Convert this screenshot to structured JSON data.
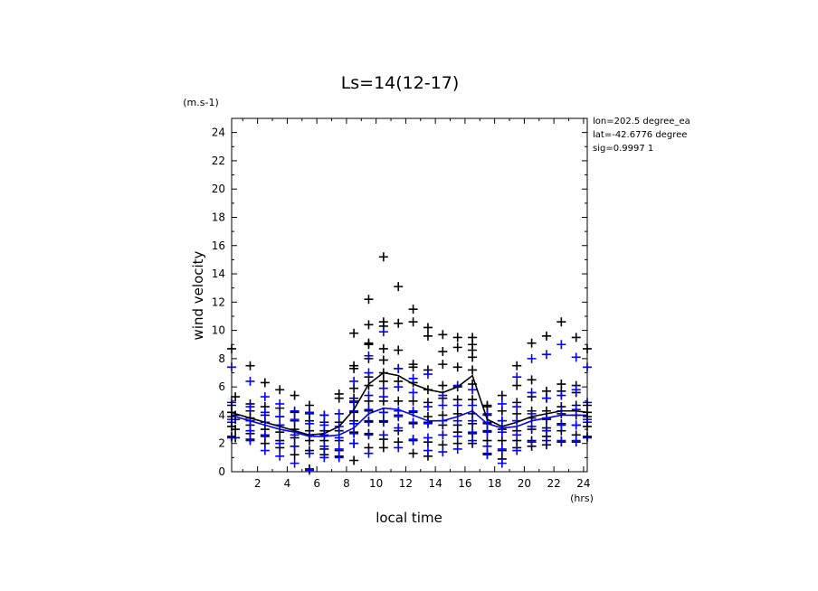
{
  "chart_data": {
    "type": "scatter",
    "title": "Ls=14(12-17)",
    "xlabel": "local time",
    "ylabel": "wind velocity",
    "y_unit": "(m.s-1)",
    "x_unit": "(hrs)",
    "xlim": [
      0.25,
      24.25
    ],
    "ylim": [
      0,
      25
    ],
    "xticks": [
      2,
      4,
      6,
      8,
      10,
      12,
      14,
      16,
      18,
      20,
      22,
      24
    ],
    "yticks": [
      0,
      2,
      4,
      6,
      8,
      10,
      12,
      14,
      16,
      18,
      20,
      22,
      24
    ],
    "info_lines": [
      "lon=202.5 degree_ea",
      "lat=-42.6776 degree",
      "sig=0.9997 1"
    ],
    "colors": {
      "black_series": "#000000",
      "blue_series": "#0000ff"
    },
    "scatter_black": [
      {
        "x": 0.25,
        "y": [
          8.7,
          4.7,
          4.2,
          3.9,
          3.2,
          2.5
        ]
      },
      {
        "x": 0.5,
        "y": [
          5.3,
          4.0,
          3.7,
          3.0,
          2.4
        ]
      },
      {
        "x": 1.5,
        "y": [
          7.5,
          4.8,
          4.3,
          3.8,
          3.3,
          2.7,
          2.3
        ]
      },
      {
        "x": 2.5,
        "y": [
          6.3,
          4.6,
          4.0,
          3.5,
          3.0,
          2.5,
          2.0
        ]
      },
      {
        "x": 3.5,
        "y": [
          5.8,
          4.5,
          3.9,
          3.3,
          2.8,
          2.2,
          1.7
        ]
      },
      {
        "x": 4.5,
        "y": [
          5.4,
          4.2,
          3.6,
          3.0,
          2.4,
          1.8,
          1.2
        ]
      },
      {
        "x": 5.5,
        "y": [
          4.7,
          4.1,
          3.6,
          2.9,
          2.2,
          1.5,
          0.2
        ]
      },
      {
        "x": 6.5,
        "y": [
          4.0,
          3.5,
          2.9,
          2.2,
          1.6,
          1.2
        ]
      },
      {
        "x": 7.5,
        "y": [
          5.5,
          5.2,
          4.1,
          3.5,
          2.9,
          2.2,
          1.5,
          1.1
        ]
      },
      {
        "x": 8.5,
        "y": [
          9.8,
          7.5,
          7.3,
          5.9,
          5.2,
          4.9,
          4.2,
          3.6,
          2.8,
          2.0,
          0.8
        ]
      },
      {
        "x": 9.5,
        "y": [
          12.2,
          10.4,
          9.1,
          9.0,
          8.0,
          6.7,
          6.1,
          5.0,
          4.3,
          3.6,
          2.7,
          1.7
        ]
      },
      {
        "x": 10.5,
        "y": [
          15.2,
          10.6,
          10.3,
          8.7,
          7.9,
          7.0,
          6.4,
          5.0,
          4.2,
          3.6,
          2.3,
          1.7
        ]
      },
      {
        "x": 11.5,
        "y": [
          13.1,
          10.5,
          8.6,
          7.3,
          6.4,
          5.0,
          4.0,
          2.9,
          2.1
        ]
      },
      {
        "x": 12.5,
        "y": [
          11.5,
          10.6,
          7.6,
          7.4,
          6.3,
          5.0,
          4.2,
          3.4,
          2.2,
          1.3
        ]
      },
      {
        "x": 13.5,
        "y": [
          10.2,
          9.6,
          7.2,
          5.8,
          4.9,
          3.9,
          3.5,
          2.1,
          1.1
        ]
      },
      {
        "x": 14.5,
        "y": [
          9.7,
          8.5,
          7.6,
          6.1,
          5.2,
          4.0,
          3.3,
          2.6,
          1.9
        ]
      },
      {
        "x": 15.5,
        "y": [
          9.5,
          8.8,
          7.4,
          6.0,
          5.1,
          4.1,
          3.3,
          2.8,
          2.0
        ]
      },
      {
        "x": 16.5,
        "y": [
          9.5,
          9.0,
          8.6,
          8.1,
          7.2,
          6.2,
          5.1,
          4.1,
          3.4,
          2.7,
          2.0
        ]
      },
      {
        "x": 17.5,
        "y": [
          4.7,
          4.6,
          4.0,
          3.4,
          2.9,
          2.2,
          1.3
        ]
      },
      {
        "x": 18.5,
        "y": [
          5.4,
          4.3,
          3.6,
          3.0,
          2.2,
          1.5,
          0.9
        ]
      },
      {
        "x": 19.5,
        "y": [
          7.5,
          6.1,
          4.9,
          4.1,
          3.6,
          2.9,
          2.2,
          1.7
        ]
      },
      {
        "x": 20.5,
        "y": [
          9.1,
          6.5,
          5.3,
          4.3,
          3.8,
          3.0,
          2.2,
          1.8
        ]
      },
      {
        "x": 21.5,
        "y": [
          9.6,
          5.7,
          5.2,
          4.3,
          3.7,
          3.1,
          2.5,
          1.9
        ]
      },
      {
        "x": 22.5,
        "y": [
          10.6,
          6.2,
          5.7,
          4.6,
          4.1,
          3.4,
          2.9,
          2.1
        ]
      },
      {
        "x": 23.5,
        "y": [
          9.5,
          6.1,
          5.6,
          4.7,
          4.0,
          3.3,
          2.6,
          2.1
        ]
      },
      {
        "x": 24.25,
        "y": [
          8.7,
          4.7,
          4.2,
          3.9,
          3.2,
          2.5
        ]
      }
    ],
    "scatter_blue": [
      {
        "x": 0.25,
        "y": [
          7.4,
          4.9,
          3.7,
          3.5,
          2.4
        ]
      },
      {
        "x": 1.5,
        "y": [
          6.4,
          4.6,
          3.6,
          2.9,
          2.2
        ]
      },
      {
        "x": 2.5,
        "y": [
          5.3,
          4.2,
          3.5,
          2.6,
          1.5
        ]
      },
      {
        "x": 3.5,
        "y": [
          4.8,
          3.9,
          3.3,
          2.0,
          1.1
        ]
      },
      {
        "x": 4.5,
        "y": [
          4.3,
          3.7,
          2.6,
          1.8,
          0.6
        ]
      },
      {
        "x": 5.5,
        "y": [
          4.2,
          3.4,
          2.6,
          1.3,
          0.1
        ]
      },
      {
        "x": 6.5,
        "y": [
          4.0,
          3.3,
          2.6,
          1.8,
          1.0
        ]
      },
      {
        "x": 7.5,
        "y": [
          4.1,
          3.2,
          2.4,
          1.6,
          1.0
        ]
      },
      {
        "x": 8.5,
        "y": [
          6.4,
          5.0,
          4.3,
          3.4,
          2.7,
          2.0
        ]
      },
      {
        "x": 9.5,
        "y": [
          8.2,
          7.0,
          5.4,
          4.4,
          3.5,
          2.6,
          1.3
        ]
      },
      {
        "x": 10.5,
        "y": [
          9.9,
          5.9,
          5.3,
          4.2,
          3.5,
          2.6
        ]
      },
      {
        "x": 11.5,
        "y": [
          7.3,
          6.0,
          4.3,
          3.9,
          3.1,
          1.7
        ]
      },
      {
        "x": 12.5,
        "y": [
          6.6,
          5.6,
          4.3,
          3.5,
          2.3
        ]
      },
      {
        "x": 13.5,
        "y": [
          6.9,
          4.6,
          3.4,
          2.4,
          1.5
        ]
      },
      {
        "x": 14.5,
        "y": [
          5.4,
          4.7,
          3.6,
          2.6,
          1.4
        ]
      },
      {
        "x": 15.5,
        "y": [
          6.1,
          4.7,
          3.6,
          2.5,
          1.6
        ]
      },
      {
        "x": 16.5,
        "y": [
          5.8,
          4.7,
          3.6,
          2.8,
          2.2
        ]
      },
      {
        "x": 17.5,
        "y": [
          4.1,
          3.5,
          2.8,
          1.8,
          1.2
        ]
      },
      {
        "x": 18.5,
        "y": [
          4.8,
          3.6,
          2.8,
          1.6,
          0.6
        ]
      },
      {
        "x": 19.5,
        "y": [
          6.7,
          4.6,
          3.6,
          2.6,
          1.5
        ]
      },
      {
        "x": 20.5,
        "y": [
          8.0,
          5.6,
          4.1,
          3.2,
          2.1
        ]
      },
      {
        "x": 21.5,
        "y": [
          8.3,
          5.2,
          3.8,
          2.9,
          2.2
        ]
      },
      {
        "x": 22.5,
        "y": [
          9.0,
          5.4,
          4.3,
          3.3,
          2.2
        ]
      },
      {
        "x": 23.5,
        "y": [
          8.1,
          5.8,
          4.4,
          3.3,
          2.2
        ]
      },
      {
        "x": 24.25,
        "y": [
          7.4,
          4.9,
          3.7,
          3.5,
          2.4
        ]
      }
    ],
    "series": [
      {
        "color": "#000000",
        "x": [
          0.25,
          0.5,
          1.5,
          2.5,
          3.5,
          4.5,
          5.5,
          6.5,
          7.5,
          8.5,
          9.5,
          10.5,
          11.5,
          12.5,
          13.5,
          14.5,
          15.5,
          16.5,
          17.5,
          18.5,
          19.5,
          20.5,
          21.5,
          22.5,
          23.5,
          24.25
        ],
        "y": [
          4.2,
          4.1,
          3.8,
          3.5,
          3.2,
          2.9,
          2.6,
          2.7,
          3.2,
          4.4,
          6.2,
          7.0,
          6.8,
          6.2,
          5.8,
          5.6,
          6.0,
          6.8,
          3.7,
          3.2,
          3.5,
          3.9,
          4.1,
          4.3,
          4.3,
          4.2
        ]
      },
      {
        "color": "#0000ff",
        "x": [
          0.25,
          0.5,
          1.5,
          2.5,
          3.5,
          4.5,
          5.5,
          6.5,
          7.5,
          8.5,
          9.5,
          10.5,
          11.5,
          12.5,
          13.5,
          14.5,
          15.5,
          16.5,
          17.5,
          18.5,
          19.5,
          20.5,
          21.5,
          22.5,
          23.5,
          24.25
        ],
        "y": [
          4.0,
          3.9,
          3.6,
          3.3,
          3.0,
          2.8,
          2.5,
          2.5,
          2.6,
          3.1,
          4.1,
          4.5,
          4.4,
          4.0,
          3.6,
          3.6,
          3.9,
          4.3,
          3.4,
          3.1,
          3.2,
          3.6,
          3.8,
          4.0,
          4.0,
          4.0
        ]
      }
    ]
  }
}
